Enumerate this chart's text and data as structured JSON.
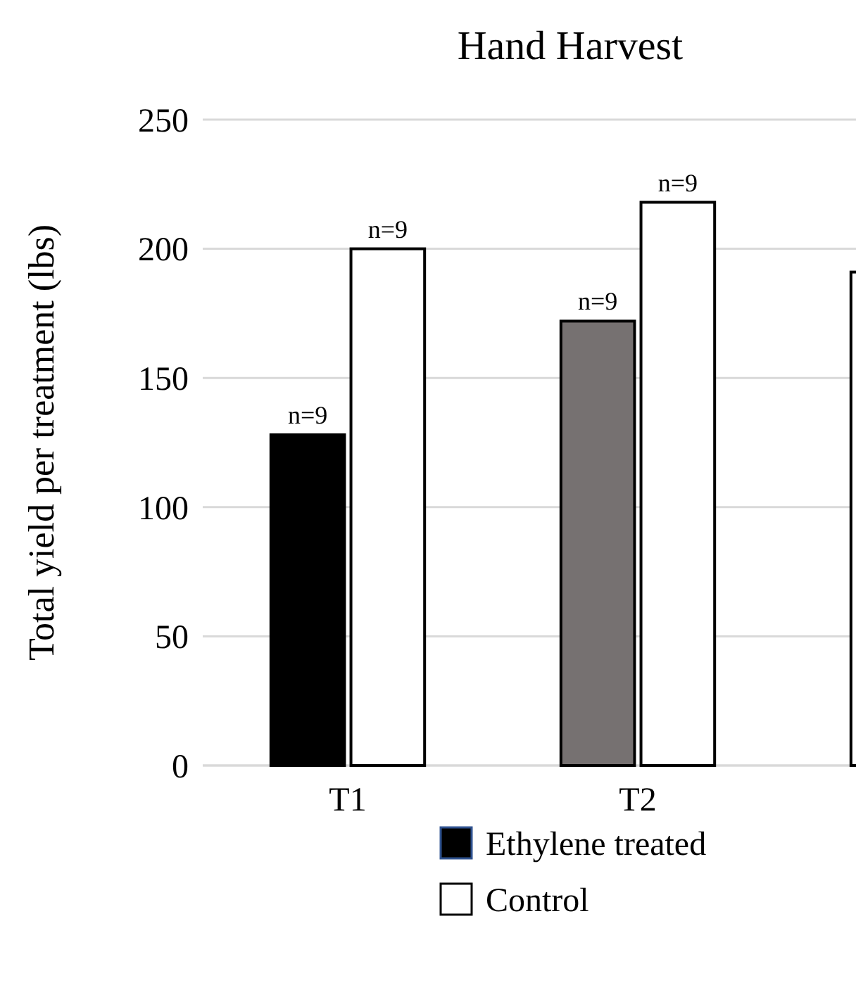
{
  "chart_data": {
    "type": "bar",
    "title": "Hand Harvest",
    "ylabel": "Total yield per treatment (lbs)",
    "categories": [
      "T1",
      "T2",
      null
    ],
    "series": [
      {
        "name": "Ethylene treated",
        "color": "#000000",
        "colors": [
          "#000000",
          "#767171",
          "#ffffff"
        ],
        "values": [
          128,
          172,
          191
        ]
      },
      {
        "name": "Control",
        "color": "#ffffff",
        "values": [
          200,
          218,
          null
        ]
      }
    ],
    "annotations": [
      {
        "text": "n=9",
        "x": "T1",
        "y": 128
      },
      {
        "text": "n=9",
        "x": "T1",
        "y": 200
      },
      {
        "text": "n=9",
        "x": "T2",
        "y": 172
      },
      {
        "text": "n=9",
        "x": "T2",
        "y": 218
      }
    ],
    "ylim": [
      0,
      250
    ],
    "yticks": [
      0,
      50,
      100,
      150,
      200,
      250
    ],
    "grid": "y",
    "legend": "bottom"
  }
}
